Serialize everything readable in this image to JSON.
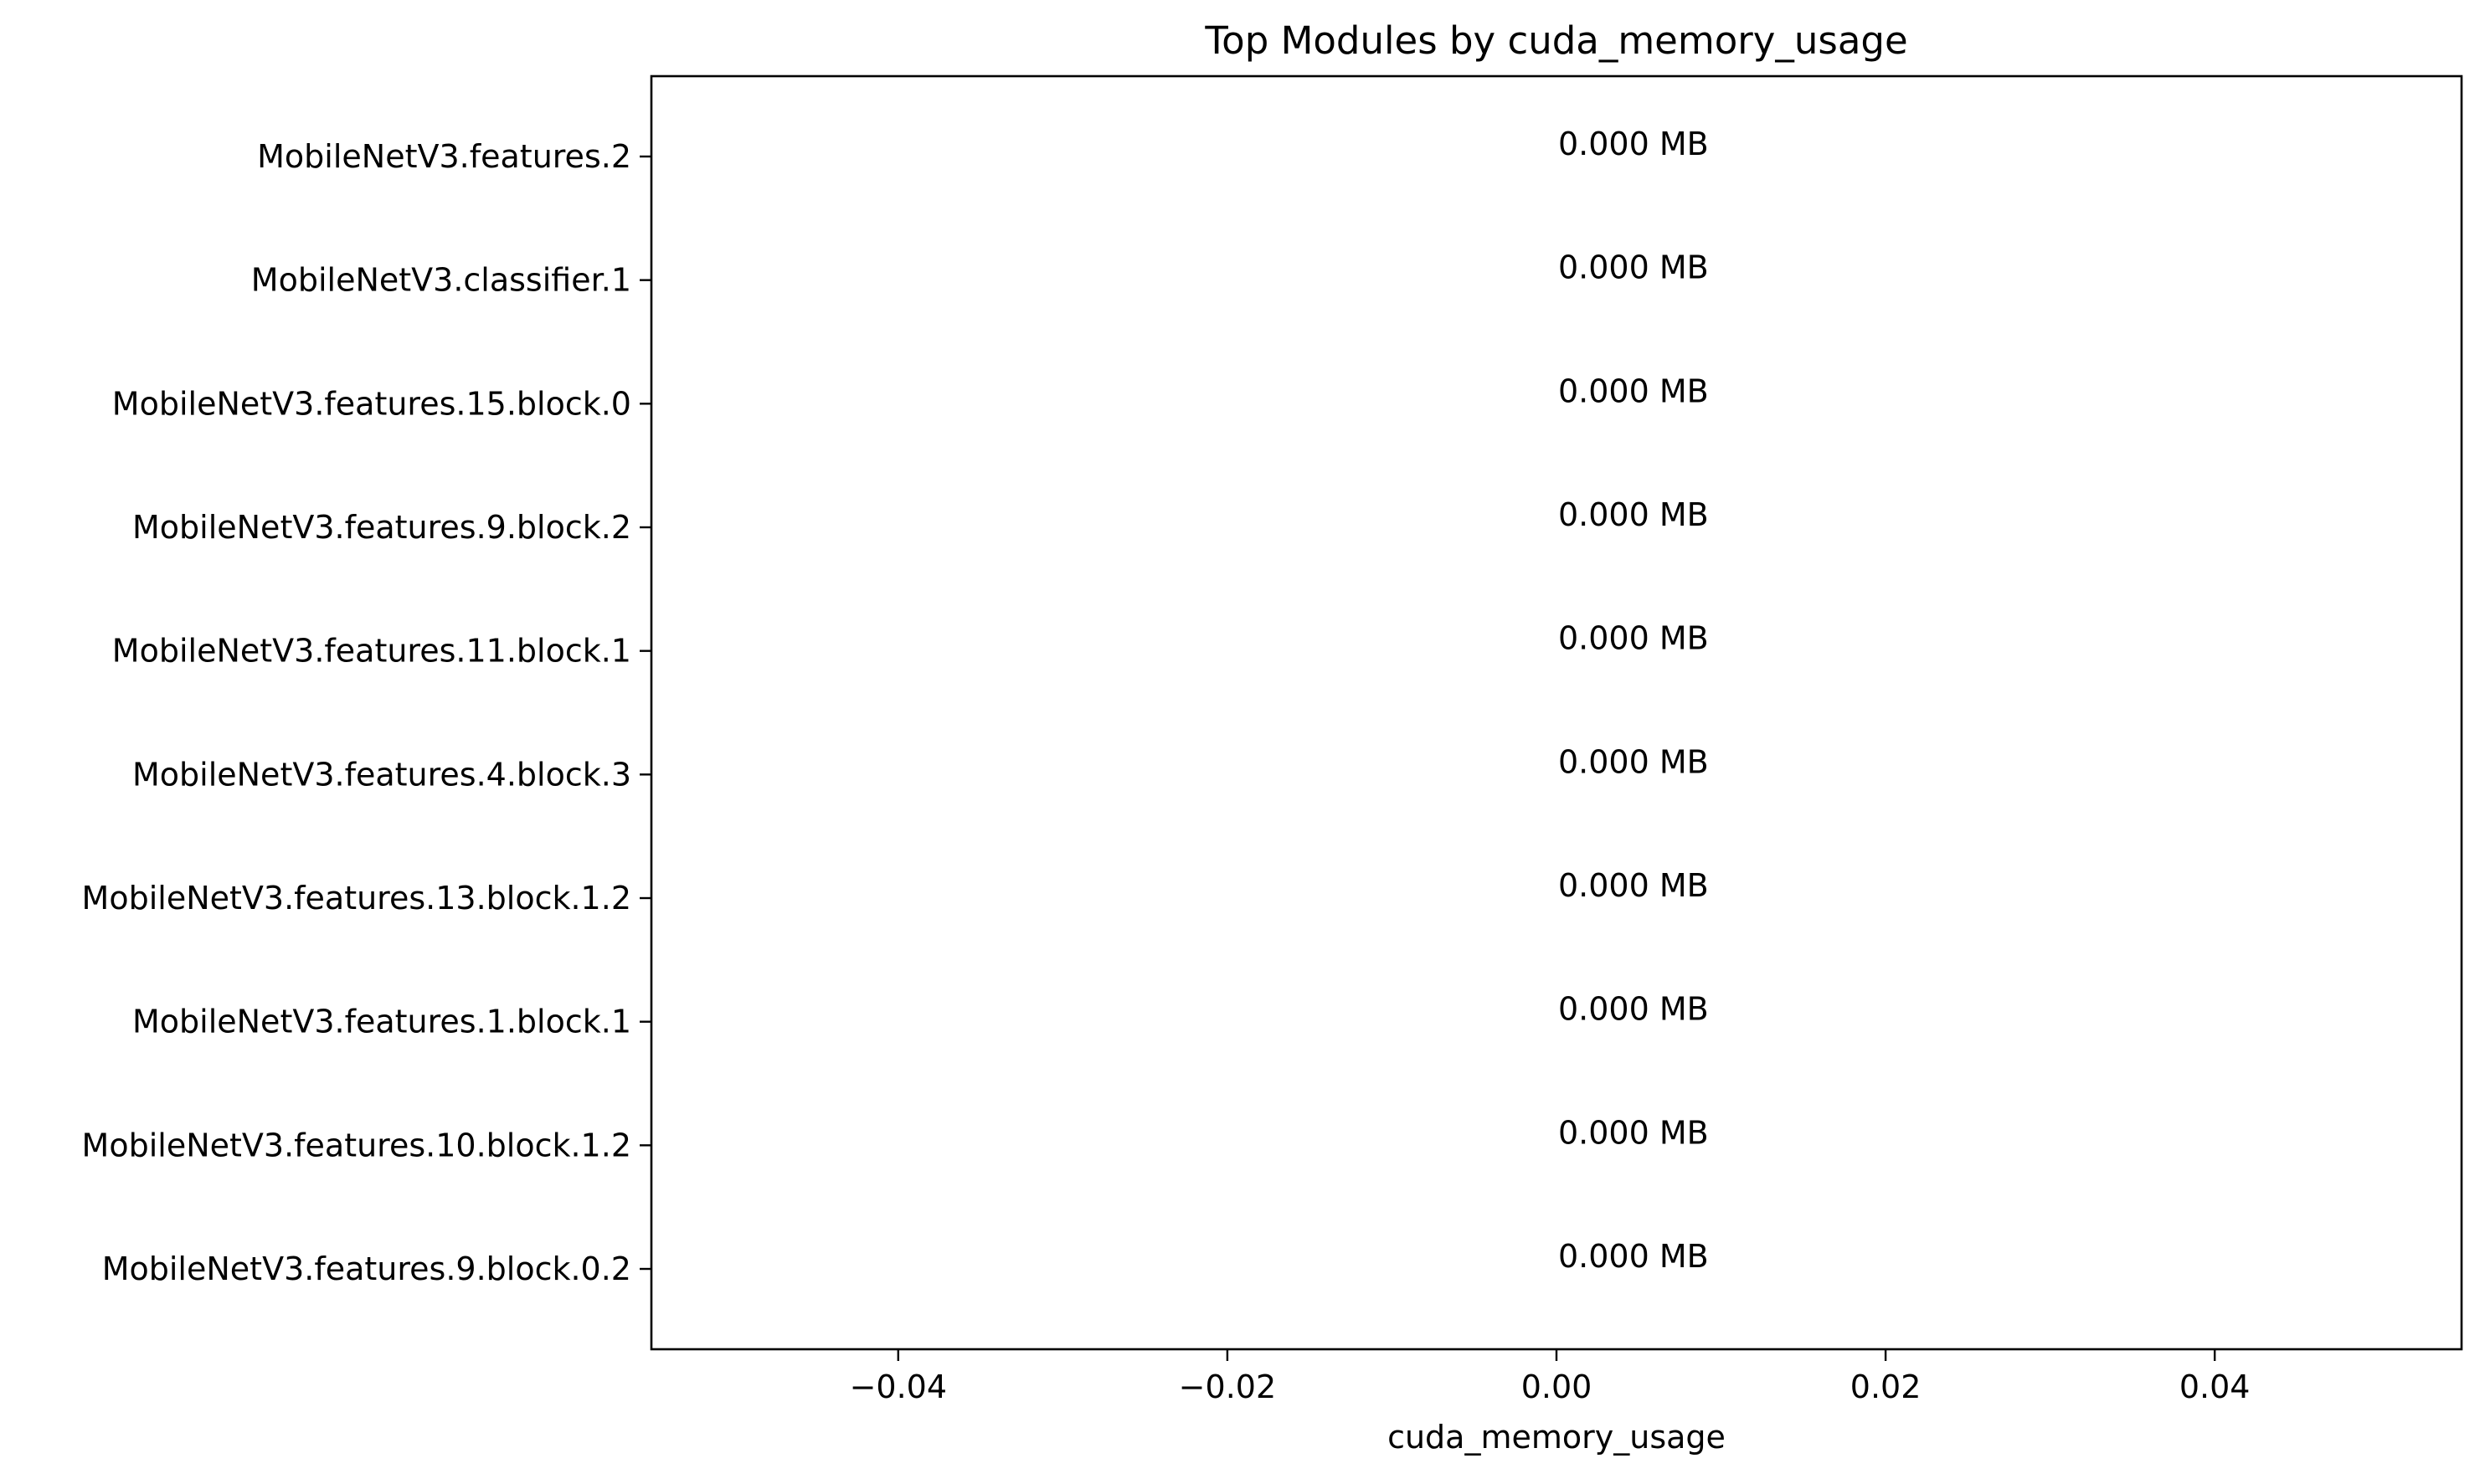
{
  "chart_data": {
    "type": "bar",
    "orientation": "horizontal",
    "title": "Top Modules by cuda_memory_usage",
    "xlabel": "cuda_memory_usage",
    "ylabel": "",
    "xlim": [
      -0.055,
      0.055
    ],
    "xticks": [
      -0.04,
      -0.02,
      0.0,
      0.02,
      0.04
    ],
    "xtick_labels": [
      "−0.04",
      "−0.02",
      "0.00",
      "0.02",
      "0.04"
    ],
    "grid": false,
    "legend": "none",
    "categories": [
      "MobileNetV3.features.2",
      "MobileNetV3.classifier.1",
      "MobileNetV3.features.15.block.0",
      "MobileNetV3.features.9.block.2",
      "MobileNetV3.features.11.block.1",
      "MobileNetV3.features.4.block.3",
      "MobileNetV3.features.13.block.1.2",
      "MobileNetV3.features.1.block.1",
      "MobileNetV3.features.10.block.1.2",
      "MobileNetV3.features.9.block.0.2"
    ],
    "values": [
      0,
      0,
      0,
      0,
      0,
      0,
      0,
      0,
      0,
      0
    ],
    "data_labels": [
      "0.000 MB",
      "0.000 MB",
      "0.000 MB",
      "0.000 MB",
      "0.000 MB",
      "0.000 MB",
      "0.000 MB",
      "0.000 MB",
      "0.000 MB",
      "0.000 MB"
    ],
    "bar_color": "#1f77b4"
  }
}
